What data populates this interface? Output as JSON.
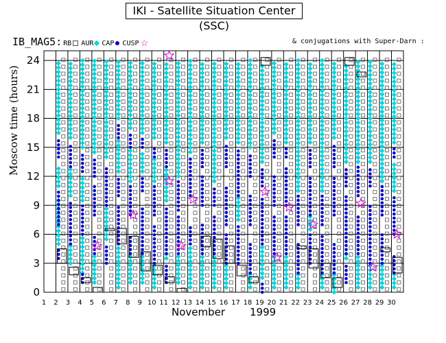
{
  "title": "IKI - Satellite Situation Center (SSC)",
  "legend": {
    "name": "IB_MAG5:",
    "items": [
      "RB",
      "AUR",
      "CAP",
      "CUSP"
    ]
  },
  "note": "& conjugations with Super-Darn :",
  "colors": {
    "rb": "#555555",
    "aur": "#00d8e0",
    "cusp": "#0000d0",
    "conj": "#d000d0",
    "grid": "#000000"
  },
  "chart_data": {
    "type": "scatter",
    "ylabel": "Moscow time (hours)",
    "xlabel_month": "November",
    "xlabel_year": "1999",
    "ylim": [
      0,
      25
    ],
    "xlim": [
      1,
      31
    ],
    "yticks": [
      "0",
      "3",
      "6",
      "9",
      "12",
      "15",
      "18",
      "21",
      "24"
    ],
    "xticks": [
      "1",
      "2",
      "3",
      "4",
      "5",
      "6",
      "7",
      "8",
      "9",
      "10",
      "11",
      "12",
      "13",
      "14",
      "15",
      "16",
      "17",
      "18",
      "19",
      "20",
      "21",
      "22",
      "23",
      "24",
      "25",
      "26",
      "27",
      "28",
      "29",
      "30"
    ],
    "days": [
      {
        "d": 2,
        "cusp": [
          [
            3.5,
            4.5
          ],
          [
            7,
            10.5
          ],
          [
            14,
            16
          ]
        ],
        "aur": [
          [
            5,
            9.5
          ],
          [
            11,
            13
          ],
          [
            16.5,
            24
          ]
        ],
        "box": [
          3,
          4.5
        ]
      },
      {
        "d": 3,
        "cusp": [
          [
            5,
            9.5
          ],
          [
            13,
            15.5
          ]
        ],
        "aur": [
          [
            3,
            5
          ],
          [
            10,
            13
          ],
          [
            16,
            24
          ]
        ],
        "box": [
          1.8,
          2.6
        ]
      },
      {
        "d": 4,
        "cusp": [
          [
            1,
            2
          ],
          [
            6,
            9
          ],
          [
            12.5,
            14.5
          ]
        ],
        "aur": [
          [
            2,
            6
          ],
          [
            9.5,
            12
          ],
          [
            15,
            24
          ]
        ],
        "box": [
          1,
          1.5
        ]
      },
      {
        "d": 5,
        "cusp": [
          [
            4,
            6
          ],
          [
            8,
            11
          ],
          [
            12,
            14
          ]
        ],
        "aur": [
          [
            1,
            4
          ],
          [
            14.5,
            24
          ]
        ],
        "box": [
          0,
          0.5
        ],
        "conj": [
          4.8
        ]
      },
      {
        "d": 6,
        "cusp": [
          [
            3,
            5
          ],
          [
            9,
            13
          ]
        ],
        "aur": [
          [
            5.5,
            9
          ],
          [
            14,
            24
          ]
        ],
        "box": [
          6.4,
          6.6
        ]
      },
      {
        "d": 7,
        "cusp": [
          [
            5,
            9
          ],
          [
            10,
            12
          ],
          [
            16,
            17.5
          ]
        ],
        "aur": [
          [
            0.5,
            5
          ],
          [
            12.5,
            16
          ],
          [
            18,
            24
          ]
        ],
        "box": [
          5,
          6.6
        ]
      },
      {
        "d": 8,
        "cusp": [
          [
            4,
            6
          ],
          [
            8,
            11
          ],
          [
            15,
            16.5
          ]
        ],
        "aur": [
          [
            1,
            4
          ],
          [
            11.5,
            15
          ],
          [
            17,
            24
          ]
        ],
        "box": [
          3.6,
          5.8
        ],
        "conj": [
          8
        ]
      },
      {
        "d": 9,
        "cusp": [
          [
            4,
            9
          ],
          [
            10.5,
            12
          ],
          [
            15,
            16
          ]
        ],
        "aur": [
          [
            1,
            4
          ],
          [
            12.5,
            14.5
          ],
          [
            16.5,
            24
          ]
        ],
        "box": [
          2.2,
          4.2
        ]
      },
      {
        "d": 10,
        "cusp": [
          [
            3,
            7
          ],
          [
            8,
            11
          ],
          [
            14,
            15
          ]
        ],
        "aur": [
          [
            0.5,
            3
          ],
          [
            11.5,
            14
          ],
          [
            16,
            24
          ]
        ],
        "box": [
          1.8,
          2.8
        ]
      },
      {
        "d": 11,
        "cusp": [
          [
            1,
            3
          ],
          [
            4,
            9
          ],
          [
            13,
            15
          ]
        ],
        "aur": [
          [
            3.5,
            4
          ],
          [
            9.5,
            13
          ],
          [
            15.5,
            24
          ]
        ],
        "box": [
          1,
          1.6
        ],
        "conj": [
          11.5,
          24.5
        ]
      },
      {
        "d": 12,
        "cusp": [
          [
            4,
            8
          ],
          [
            8.5,
            11.5
          ]
        ],
        "aur": [
          [
            1,
            4
          ],
          [
            12,
            24
          ]
        ],
        "box": [
          0,
          0.4
        ],
        "conj": [
          4.8
        ]
      },
      {
        "d": 13,
        "cusp": [
          [
            5,
            7
          ],
          [
            10,
            14
          ]
        ],
        "aur": [
          [
            0.5,
            5
          ],
          [
            14.5,
            24
          ]
        ],
        "conj": [
          9.6
        ]
      },
      {
        "d": 14,
        "cusp": [
          [
            4,
            7
          ],
          [
            9,
            12
          ],
          [
            13,
            15
          ]
        ],
        "aur": [
          [
            0.5,
            4
          ],
          [
            15.5,
            24
          ]
        ],
        "box": [
          4.7,
          5.8
        ]
      },
      {
        "d": 15,
        "cusp": [
          [
            4,
            8
          ],
          [
            9,
            11
          ]
        ],
        "aur": [
          [
            0.5,
            4
          ],
          [
            11.5,
            24
          ]
        ],
        "box": [
          3.5,
          5.5
        ]
      },
      {
        "d": 16,
        "cusp": [
          [
            3,
            6
          ],
          [
            7,
            11
          ],
          [
            13,
            15.5
          ]
        ],
        "aur": [
          [
            0.5,
            3
          ],
          [
            16,
            24
          ]
        ],
        "box": [
          3,
          4.8
        ]
      },
      {
        "d": 17,
        "cusp": [
          [
            3,
            7
          ],
          [
            10,
            15
          ]
        ],
        "aur": [
          [
            7.5,
            10
          ],
          [
            15.5,
            24
          ]
        ],
        "box": [
          1.7,
          2.8
        ]
      },
      {
        "d": 18,
        "cusp": [
          [
            2,
            5
          ],
          [
            7,
            10
          ],
          [
            12,
            14.5
          ]
        ],
        "aur": [
          [
            0.5,
            2
          ],
          [
            15,
            24
          ]
        ],
        "box": [
          1,
          1.6
        ]
      },
      {
        "d": 19,
        "cusp": [
          [
            0,
            1
          ],
          [
            5,
            10
          ],
          [
            11,
            13
          ]
        ],
        "aur": [
          [
            1.5,
            5
          ],
          [
            13.5,
            23.5
          ]
        ],
        "box": [
          23.5,
          24.3
        ],
        "conj": [
          10.4
        ]
      },
      {
        "d": 20,
        "cusp": [
          [
            4,
            8
          ],
          [
            9,
            12
          ],
          [
            14,
            16
          ]
        ],
        "aur": [
          [
            0.5,
            4
          ],
          [
            16.5,
            24
          ]
        ],
        "conj": [
          3.6
        ]
      },
      {
        "d": 21,
        "cusp": [
          [
            4,
            8
          ],
          [
            9,
            13
          ],
          [
            14,
            15
          ]
        ],
        "aur": [
          [
            0.5,
            4
          ],
          [
            15.5,
            24
          ]
        ],
        "conj": [
          8.8
        ]
      },
      {
        "d": 22,
        "cusp": [
          [
            2,
            5
          ],
          [
            7,
            10
          ]
        ],
        "aur": [
          [
            0.5,
            2
          ],
          [
            10.5,
            24
          ]
        ],
        "box": [
          4.5,
          4.8
        ]
      },
      {
        "d": 23,
        "cusp": [
          [
            3,
            6
          ],
          [
            8,
            12
          ],
          [
            13,
            15
          ]
        ],
        "aur": [
          [
            6.5,
            8
          ],
          [
            15.5,
            24
          ]
        ],
        "box": [
          2.5,
          4.5
        ],
        "conj": [
          7
        ]
      },
      {
        "d": 24,
        "cusp": [
          [
            2,
            6
          ],
          [
            7,
            10
          ]
        ],
        "aur": [
          [
            0.5,
            2
          ],
          [
            10.5,
            24
          ]
        ],
        "box": [
          1.5,
          3
        ]
      },
      {
        "d": 25,
        "cusp": [
          [
            2,
            5
          ],
          [
            8,
            12
          ],
          [
            13,
            15.5
          ]
        ],
        "aur": [
          [
            0,
            2
          ],
          [
            16,
            24
          ]
        ],
        "box": [
          0.5,
          1.5
        ]
      },
      {
        "d": 26,
        "cusp": [
          [
            1,
            3
          ],
          [
            4,
            10
          ],
          [
            11,
            13
          ]
        ],
        "aur": [
          [
            3.5,
            4
          ],
          [
            13.5,
            23.5
          ]
        ],
        "box": [
          23.5,
          24.3
        ]
      },
      {
        "d": 27,
        "cusp": [
          [
            4,
            8
          ],
          [
            10,
            13
          ]
        ],
        "aur": [
          [
            0.5,
            4
          ],
          [
            13.5,
            24
          ]
        ],
        "box": [
          22.3,
          22.8
        ],
        "conj": [
          9.2
        ]
      },
      {
        "d": 28,
        "cusp": [
          [
            3,
            9
          ],
          [
            11,
            13
          ]
        ],
        "aur": [
          [
            0.5,
            3
          ],
          [
            13.5,
            24
          ]
        ],
        "conj": [
          2.6
        ]
      },
      {
        "d": 29,
        "cusp": [
          [
            3,
            6
          ],
          [
            8,
            11
          ]
        ],
        "aur": [
          [
            0.5,
            3
          ],
          [
            11.5,
            24
          ]
        ],
        "box": [
          4.2,
          4.6
        ]
      },
      {
        "d": 30,
        "cusp": [
          [
            2,
            4
          ],
          [
            6,
            10
          ],
          [
            14,
            15
          ]
        ],
        "aur": [
          [
            0.5,
            2
          ],
          [
            10.5,
            13.5
          ],
          [
            15.5,
            24
          ]
        ],
        "box": [
          2,
          3.6
        ],
        "conj": [
          6
        ]
      }
    ]
  }
}
